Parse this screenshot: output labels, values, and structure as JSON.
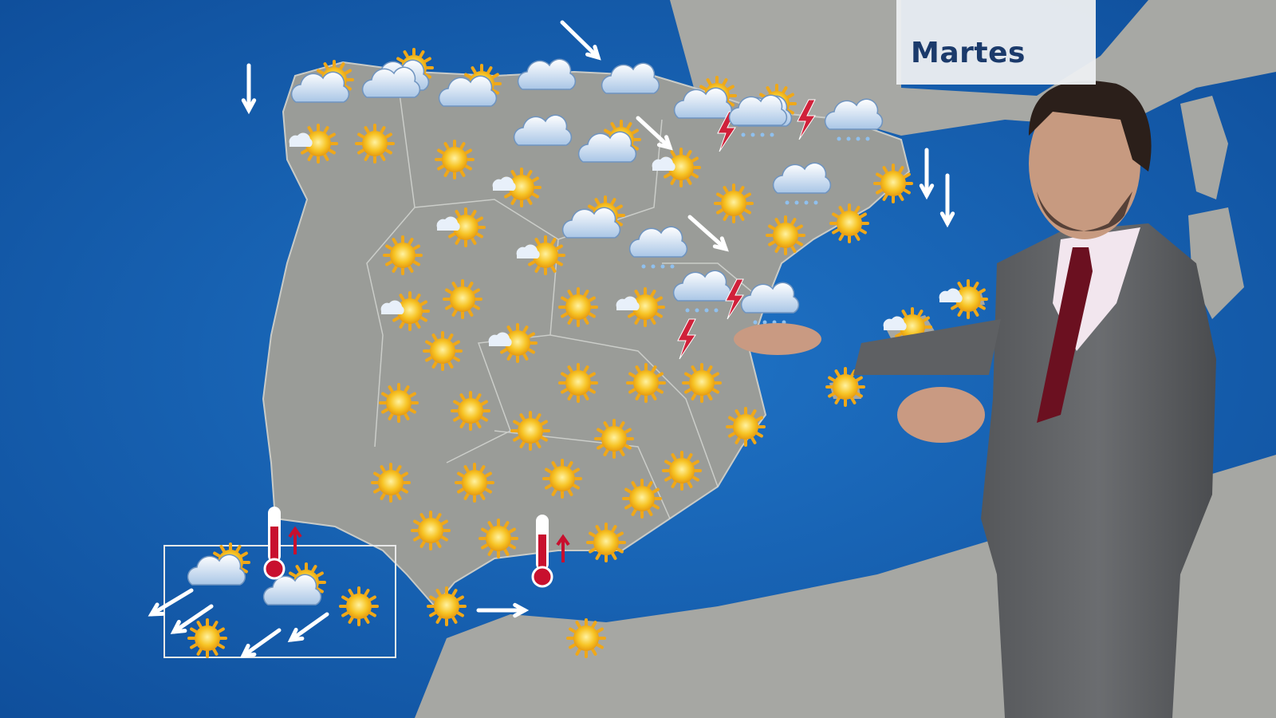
{
  "header": {
    "day_label": "Martes"
  },
  "colors": {
    "sea": "#1a63b4",
    "land": "#9a9c98",
    "day_text": "#1b3a6b",
    "thermometer": "#c8102e",
    "sun": "#f2b619"
  },
  "map_icons": [
    "sun-icon",
    "sun-cloud-icon",
    "cloud-icon",
    "rain-cloud-icon",
    "storm-icon",
    "fog-sun-icon",
    "wind-arrow-icon",
    "thermometer-up-icon"
  ]
}
